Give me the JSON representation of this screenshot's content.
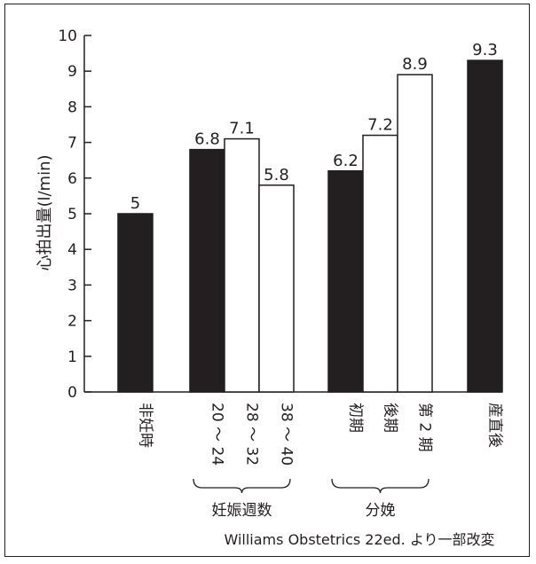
{
  "chart_data": {
    "type": "bar",
    "ylabel": "心拍出量(l/min)",
    "ylim": [
      0,
      10
    ],
    "yticks": [
      "0",
      "1",
      "2",
      "3",
      "4",
      "5",
      "6",
      "7",
      "8",
      "9",
      "10"
    ],
    "bars": [
      {
        "category": "非妊時",
        "value": 5,
        "label": "5",
        "fill": "#231f20"
      },
      {
        "category": "20 ～ 24",
        "value": 6.8,
        "label": "6.8",
        "fill": "#231f20"
      },
      {
        "category": "28 ～ 32",
        "value": 7.1,
        "label": "7.1",
        "fill": "#ffffff"
      },
      {
        "category": "38 ～ 40",
        "value": 5.8,
        "label": "5.8",
        "fill": "#ffffff"
      },
      {
        "category": "初期",
        "value": 6.2,
        "label": "6.2",
        "fill": "#231f20"
      },
      {
        "category": "後期",
        "value": 7.2,
        "label": "7.2",
        "fill": "#ffffff"
      },
      {
        "category": "第 2 期",
        "value": 8.9,
        "label": "8.9",
        "fill": "#ffffff"
      },
      {
        "category": "産直後",
        "value": 9.3,
        "label": "9.3",
        "fill": "#231f20"
      }
    ],
    "groups": [
      {
        "label": "妊娠週数",
        "members": [
          1,
          2,
          3
        ]
      },
      {
        "label": "分娩",
        "members": [
          4,
          5,
          6
        ]
      }
    ],
    "source": "Williams Obstetrics 22ed. より一部改変"
  }
}
